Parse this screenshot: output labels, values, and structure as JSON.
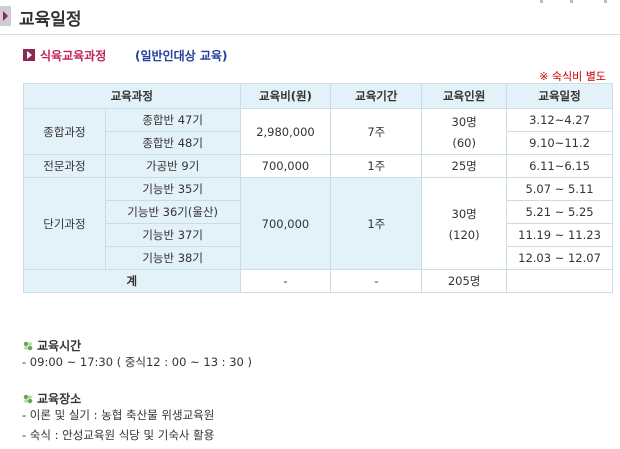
{
  "page_title": "교육일정",
  "section": {
    "label": "식육교육과정",
    "sub": "(일반인대상 교육)"
  },
  "note": "※ 숙식비 별도",
  "table": {
    "headers": [
      "교육과정",
      "교육비(원)",
      "교육기간",
      "교육인원",
      "교육일정"
    ],
    "groups": [
      {
        "category": "종합과정",
        "fee": "2,980,000",
        "period": "7주",
        "headcount": "30명",
        "headcount_sub": "(60)",
        "rows": [
          {
            "name": "종합반 47기",
            "dates": "3.12~4.27"
          },
          {
            "name": "종합반 48기",
            "dates": "9.10~11.2"
          }
        ]
      },
      {
        "category": "전문과정",
        "fee": "700,000",
        "period": "1주",
        "headcount": "25명",
        "rows": [
          {
            "name": "가공반 9기",
            "dates": "6.11~6.15"
          }
        ]
      },
      {
        "category": "단기과정",
        "fee": "700,000",
        "period": "1주",
        "headcount": "30명",
        "headcount_sub": "(120)",
        "rows": [
          {
            "name": "기능반 35기",
            "dates": "5.07 ~ 5.11"
          },
          {
            "name": "기능반 36기(울산)",
            "dates": "5.21 ~ 5.25"
          },
          {
            "name": "기능반 37기",
            "dates": "11.19 ~ 11.23"
          },
          {
            "name": "기능반 38기",
            "dates": "12.03 ~ 12.07"
          }
        ]
      }
    ],
    "total": {
      "label": "계",
      "fee": "-",
      "period": "-",
      "headcount": "205명",
      "dates": ""
    }
  },
  "education_time": {
    "heading": "교육시간",
    "text": "- 09:00 ~ 17:30 ( 중식12 : 00 ~ 13 : 30 )"
  },
  "education_place": {
    "heading": "교육장소",
    "lines": [
      "- 이론 및 실기 : 농협 축산물 위생교육원",
      "- 숙식 : 안성교육원 식당 및 기숙사 활용"
    ]
  }
}
